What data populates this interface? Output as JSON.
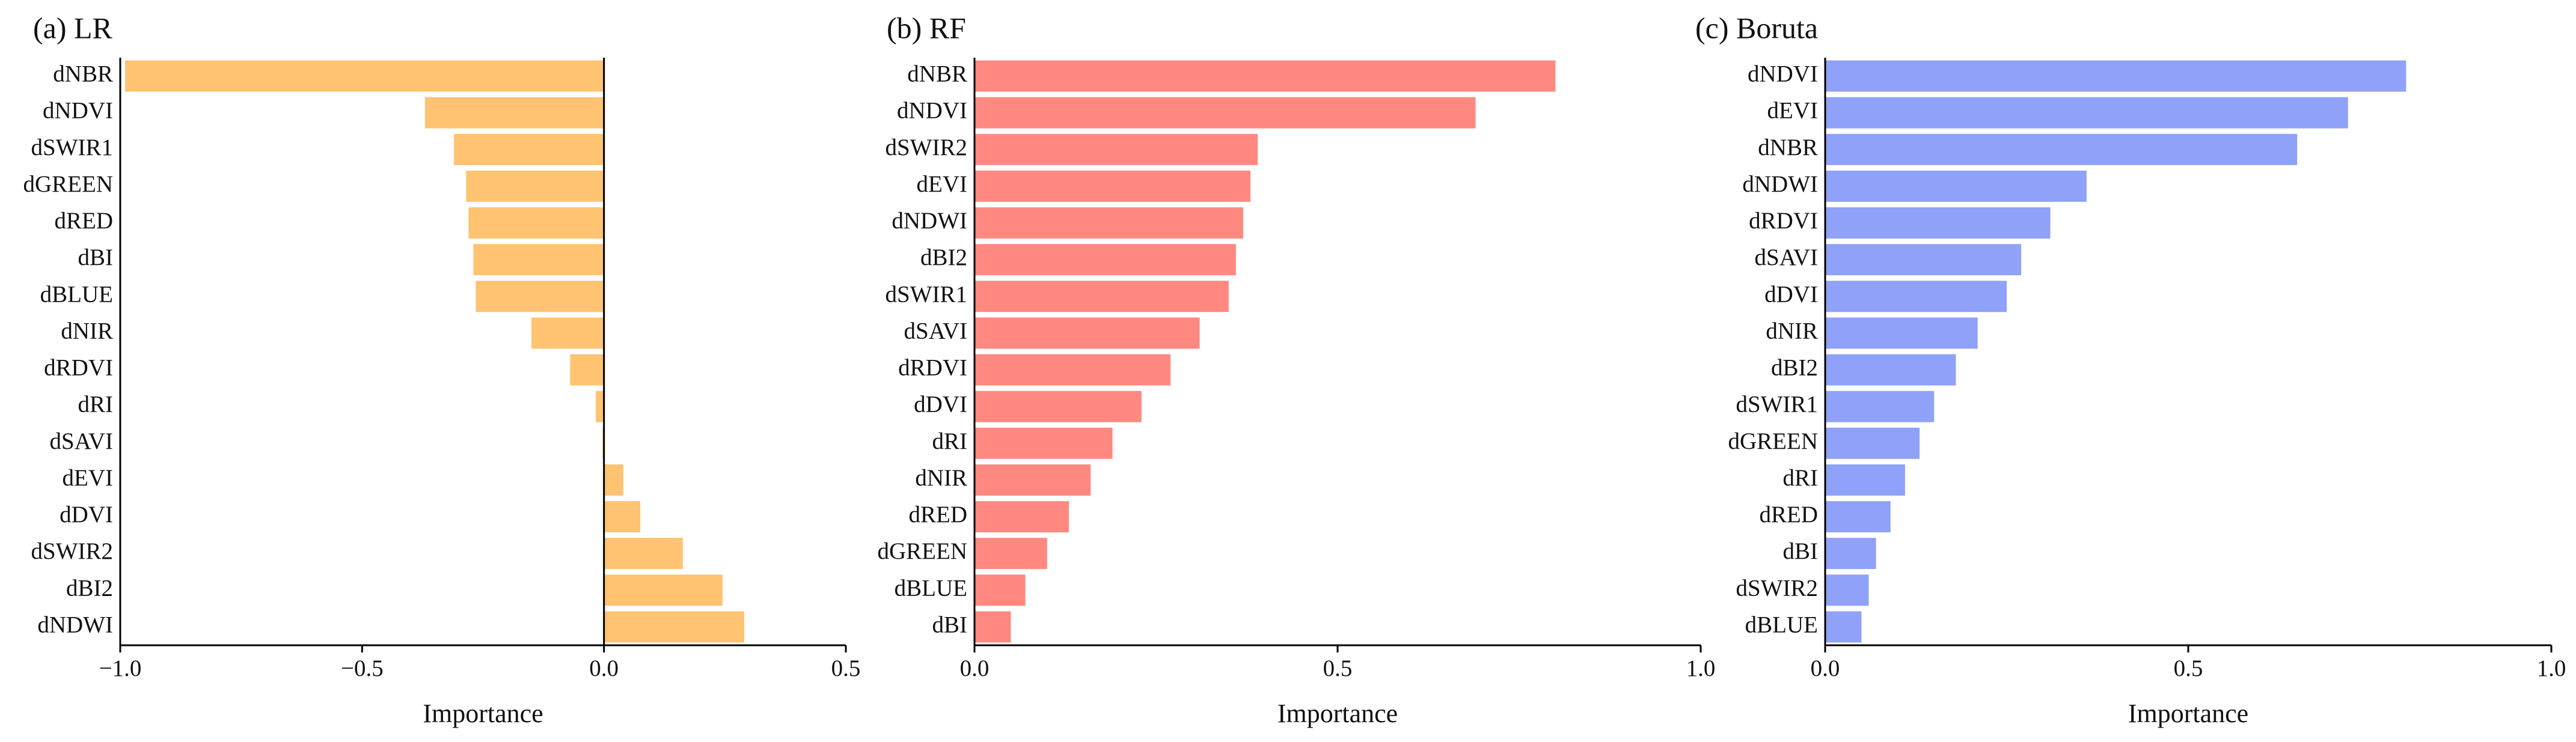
{
  "chart_data": [
    {
      "type": "bar",
      "orientation": "horizontal",
      "title": "(a) LR",
      "xlabel": "Importance",
      "color": "#ffc372",
      "categories": [
        "dNBR",
        "dNDVI",
        "dSWIR1",
        "dGREEN",
        "dRED",
        "dBI",
        "dBLUE",
        "dNIR",
        "dRDVI",
        "dRI",
        "dSAVI",
        "dEVI",
        "dDVI",
        "dSWIR2",
        "dBI2",
        "dNDWI"
      ],
      "values": [
        -0.99,
        -0.37,
        -0.31,
        -0.285,
        -0.28,
        -0.27,
        -0.265,
        -0.15,
        -0.07,
        -0.017,
        -0.003,
        0.04,
        0.075,
        0.163,
        0.245,
        0.29
      ],
      "xlim": [
        -1.0,
        0.5
      ],
      "xticks": [
        {
          "value": -1.0,
          "label": "−1.0"
        },
        {
          "value": -0.5,
          "label": "−0.5"
        },
        {
          "value": 0.0,
          "label": "0.0"
        },
        0.5
      ],
      "zero_line": true
    },
    {
      "type": "bar",
      "orientation": "horizontal",
      "title": "(b) RF",
      "xlabel": "Importance",
      "color": "#ff8981",
      "categories": [
        "dNBR",
        "dNDVI",
        "dSWIR2",
        "dEVI",
        "dNDWI",
        "dBI2",
        "dSWIR1",
        "dSAVI",
        "dRDVI",
        "dDVI",
        "dRI",
        "dNIR",
        "dRED",
        "dGREEN",
        "dBLUE",
        "dBI"
      ],
      "values": [
        0.8,
        0.69,
        0.39,
        0.38,
        0.37,
        0.36,
        0.35,
        0.31,
        0.27,
        0.23,
        0.19,
        0.16,
        0.13,
        0.1,
        0.07,
        0.05
      ],
      "xlim": [
        0,
        1.0
      ],
      "xticks": [
        {
          "value": 0,
          "label": "0.0"
        },
        0.5,
        {
          "value": 1.0,
          "label": "1.0"
        }
      ],
      "zero_line": false
    },
    {
      "type": "bar",
      "orientation": "horizontal",
      "title": "(c) Boruta",
      "xlabel": "Importance",
      "color": "#8fa1f8",
      "categories": [
        "dNDVI",
        "dEVI",
        "dNBR",
        "dNDWI",
        "dRDVI",
        "dSAVI",
        "dDVI",
        "dNIR",
        "dBI2",
        "dSWIR1",
        "dGREEN",
        "dRI",
        "dRED",
        "dBI",
        "dSWIR2",
        "dBLUE"
      ],
      "values": [
        0.8,
        0.72,
        0.65,
        0.36,
        0.31,
        0.27,
        0.25,
        0.21,
        0.18,
        0.15,
        0.13,
        0.11,
        0.09,
        0.07,
        0.06,
        0.05
      ],
      "xlim": [
        0,
        1.0
      ],
      "xticks": [
        {
          "value": 0,
          "label": "0.0"
        },
        0.5,
        {
          "value": 1.0,
          "label": "1.0"
        }
      ],
      "zero_line": false
    }
  ]
}
